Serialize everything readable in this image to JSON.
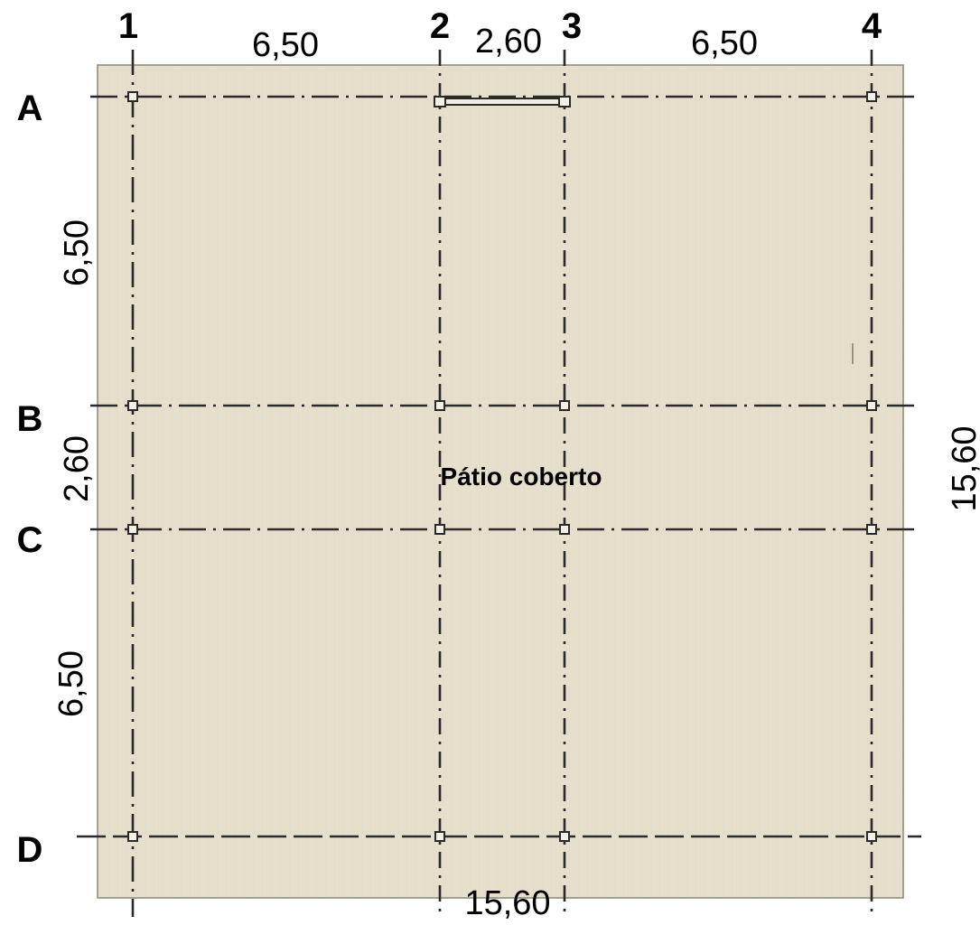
{
  "grid": {
    "columns": [
      {
        "id": "1",
        "label": "1"
      },
      {
        "id": "2",
        "label": "2"
      },
      {
        "id": "3",
        "label": "3"
      },
      {
        "id": "4",
        "label": "4"
      }
    ],
    "rows": [
      {
        "id": "A",
        "label": "A"
      },
      {
        "id": "B",
        "label": "B"
      },
      {
        "id": "C",
        "label": "C"
      },
      {
        "id": "D",
        "label": "D"
      }
    ]
  },
  "dimensions": {
    "top": [
      "6,50",
      "2,60",
      "6,50"
    ],
    "left": [
      "6,50",
      "2,60",
      "6,50"
    ],
    "right_total": "15,60",
    "bottom_total": "15,60"
  },
  "room": {
    "label": "Pátio coberto",
    "label_color": "#1f3a6e"
  },
  "colors": {
    "slab_fill": "#e6dfcc",
    "slab_border": "#8a8577",
    "grid_line": "#2a2a2a",
    "pillar_outline": "#2a2a2a"
  }
}
